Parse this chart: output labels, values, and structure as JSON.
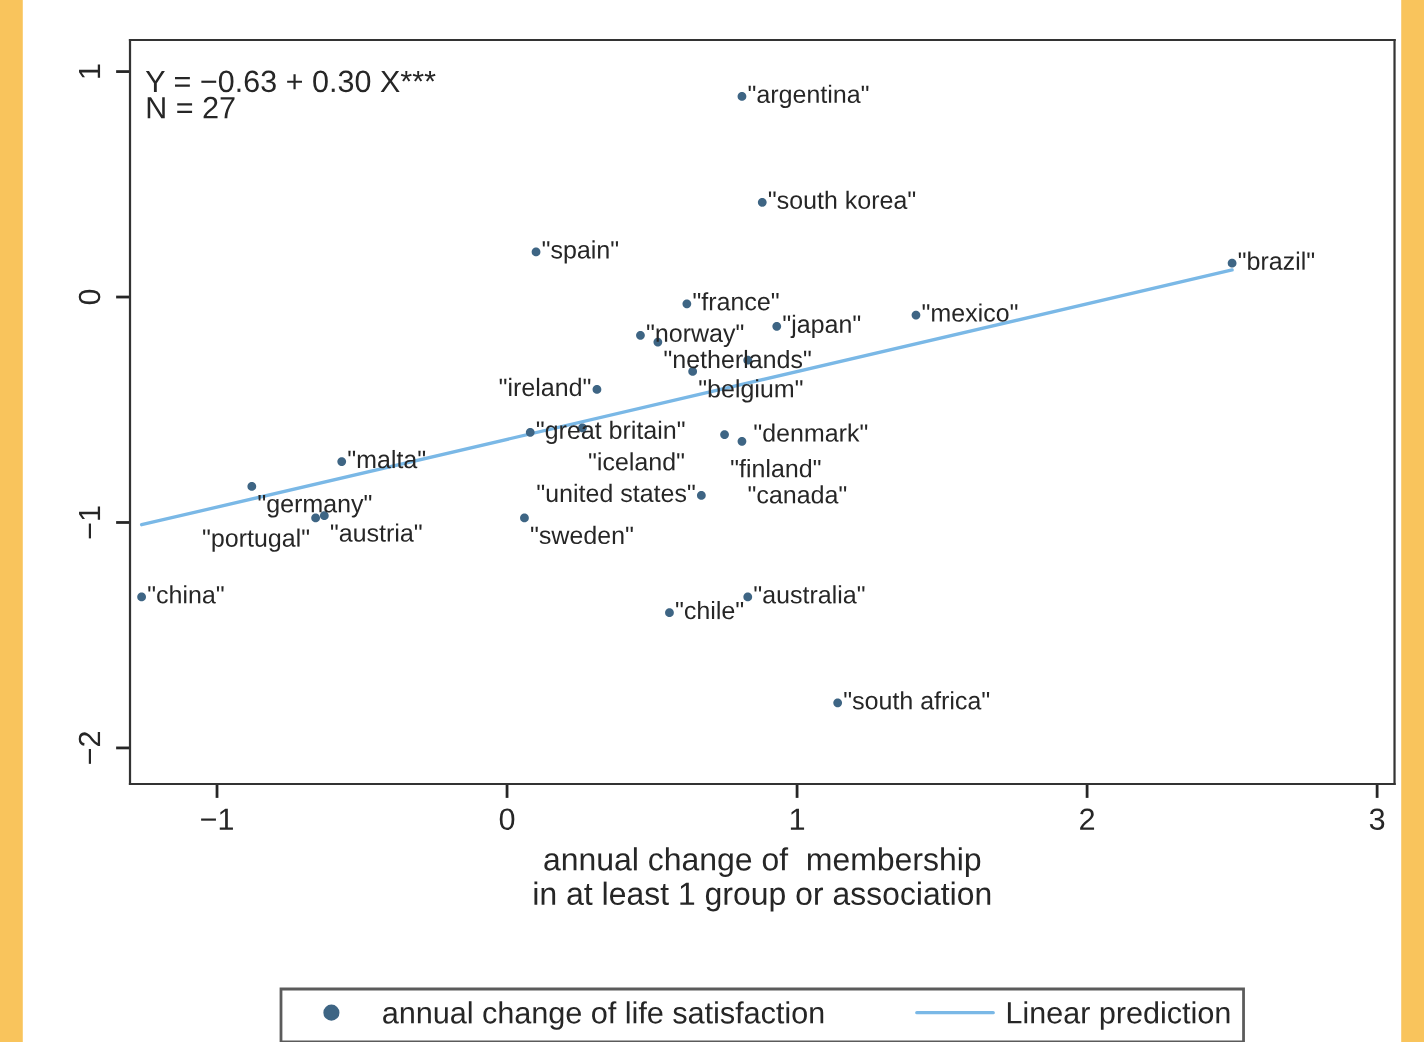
{
  "chart_data": {
    "type": "scatter",
    "xlabel": "annual change of  membership\nin at least 1 group or association",
    "xlim": [
      -1.3,
      3.06
    ],
    "ylim": [
      -2.16,
      1.14
    ],
    "xticks": [
      {
        "value": -1,
        "label": "−1"
      },
      0,
      1,
      2,
      3
    ],
    "yticks": [
      {
        "value": -2,
        "label": "−2"
      },
      {
        "value": -1,
        "label": "−1"
      },
      0,
      1
    ],
    "grid": false,
    "legend": "bottom",
    "marker": "circle",
    "series": [
      {
        "name": "annual change of life satisfaction",
        "color": "#3e6584",
        "x": [
          0.81,
          0.88,
          0.1,
          0.62,
          0.46,
          0.52,
          0.93,
          1.41,
          2.5,
          0.64,
          0.83,
          0.31,
          0.08,
          0.26,
          0.75,
          0.81,
          0.67,
          -0.57,
          -0.88,
          -0.63,
          -0.66,
          0.06,
          -1.26,
          0.56,
          0.83,
          1.14
        ],
        "values": [
          0.89,
          0.42,
          0.2,
          -0.03,
          -0.17,
          -0.2,
          -0.13,
          -0.08,
          0.15,
          -0.33,
          -0.28,
          -0.41,
          -0.6,
          -0.58,
          -0.61,
          -0.64,
          -0.88,
          -0.73,
          -0.84,
          -0.97,
          -0.98,
          -0.98,
          -1.33,
          -1.4,
          -1.33,
          -1.8
        ]
      },
      {
        "name": "Linear prediction",
        "type": "line",
        "color": "#7ab8e6",
        "marker": "none",
        "line_style": "solid",
        "x": [
          -1.26,
          2.5
        ],
        "values": [
          -1.01,
          0.12
        ]
      }
    ],
    "annotations": [
      "Y = −0.63 + 0.30 X***\nN = 27",
      {
        "text": "\"argentina\"",
        "x": 0.81,
        "y": 0.89
      },
      {
        "text": "\"south korea\"",
        "x": 0.88,
        "y": 0.42
      },
      {
        "text": "\"spain\"",
        "x": 0.1,
        "y": 0.2
      },
      {
        "text": "\"france\"",
        "x": 0.62,
        "y": -0.03
      },
      {
        "text": "\"norway\"",
        "x": 0.46,
        "y": -0.17
      },
      {
        "text": "\"netherlands\"",
        "x": 0.52,
        "y": -0.2
      },
      {
        "text": "\"japan\"",
        "x": 0.93,
        "y": -0.13
      },
      {
        "text": "\"mexico\"",
        "x": 1.41,
        "y": -0.08
      },
      {
        "text": "\"brazil\"",
        "x": 2.5,
        "y": 0.15
      },
      {
        "text": "\"belgium\"",
        "x": 0.64,
        "y": -0.33
      },
      {
        "text": "\"denmark\"",
        "x": 0.83,
        "y": -0.28
      },
      {
        "text": "\"ireland\"",
        "x": 0.31,
        "y": -0.41
      },
      {
        "text": "\"great britain\"",
        "x": 0.08,
        "y": -0.6
      },
      {
        "text": "\"iceland\"",
        "x": 0.26,
        "y": -0.58
      },
      {
        "text": "\"finland\"",
        "x": 0.75,
        "y": -0.61
      },
      {
        "text": "\"canada\"",
        "x": 0.81,
        "y": -0.64
      },
      {
        "text": "\"united states\"",
        "x": 0.67,
        "y": -0.88
      },
      {
        "text": "\"malta\"",
        "x": -0.57,
        "y": -0.73
      },
      {
        "text": "\"germany\"",
        "x": -0.88,
        "y": -0.84
      },
      {
        "text": "\"austria\"",
        "x": -0.63,
        "y": -0.97
      },
      {
        "text": "\"portugal\"",
        "x": -0.66,
        "y": -0.98
      },
      {
        "text": "\"sweden\"",
        "x": 0.06,
        "y": -0.98
      },
      {
        "text": "\"china\"",
        "x": -1.26,
        "y": -1.33
      },
      {
        "text": "\"chile\"",
        "x": 0.56,
        "y": -1.4
      },
      {
        "text": "\"australia\"",
        "x": 0.83,
        "y": -1.33
      },
      {
        "text": "\"south africa\"",
        "x": 1.14,
        "y": -1.8
      }
    ]
  }
}
